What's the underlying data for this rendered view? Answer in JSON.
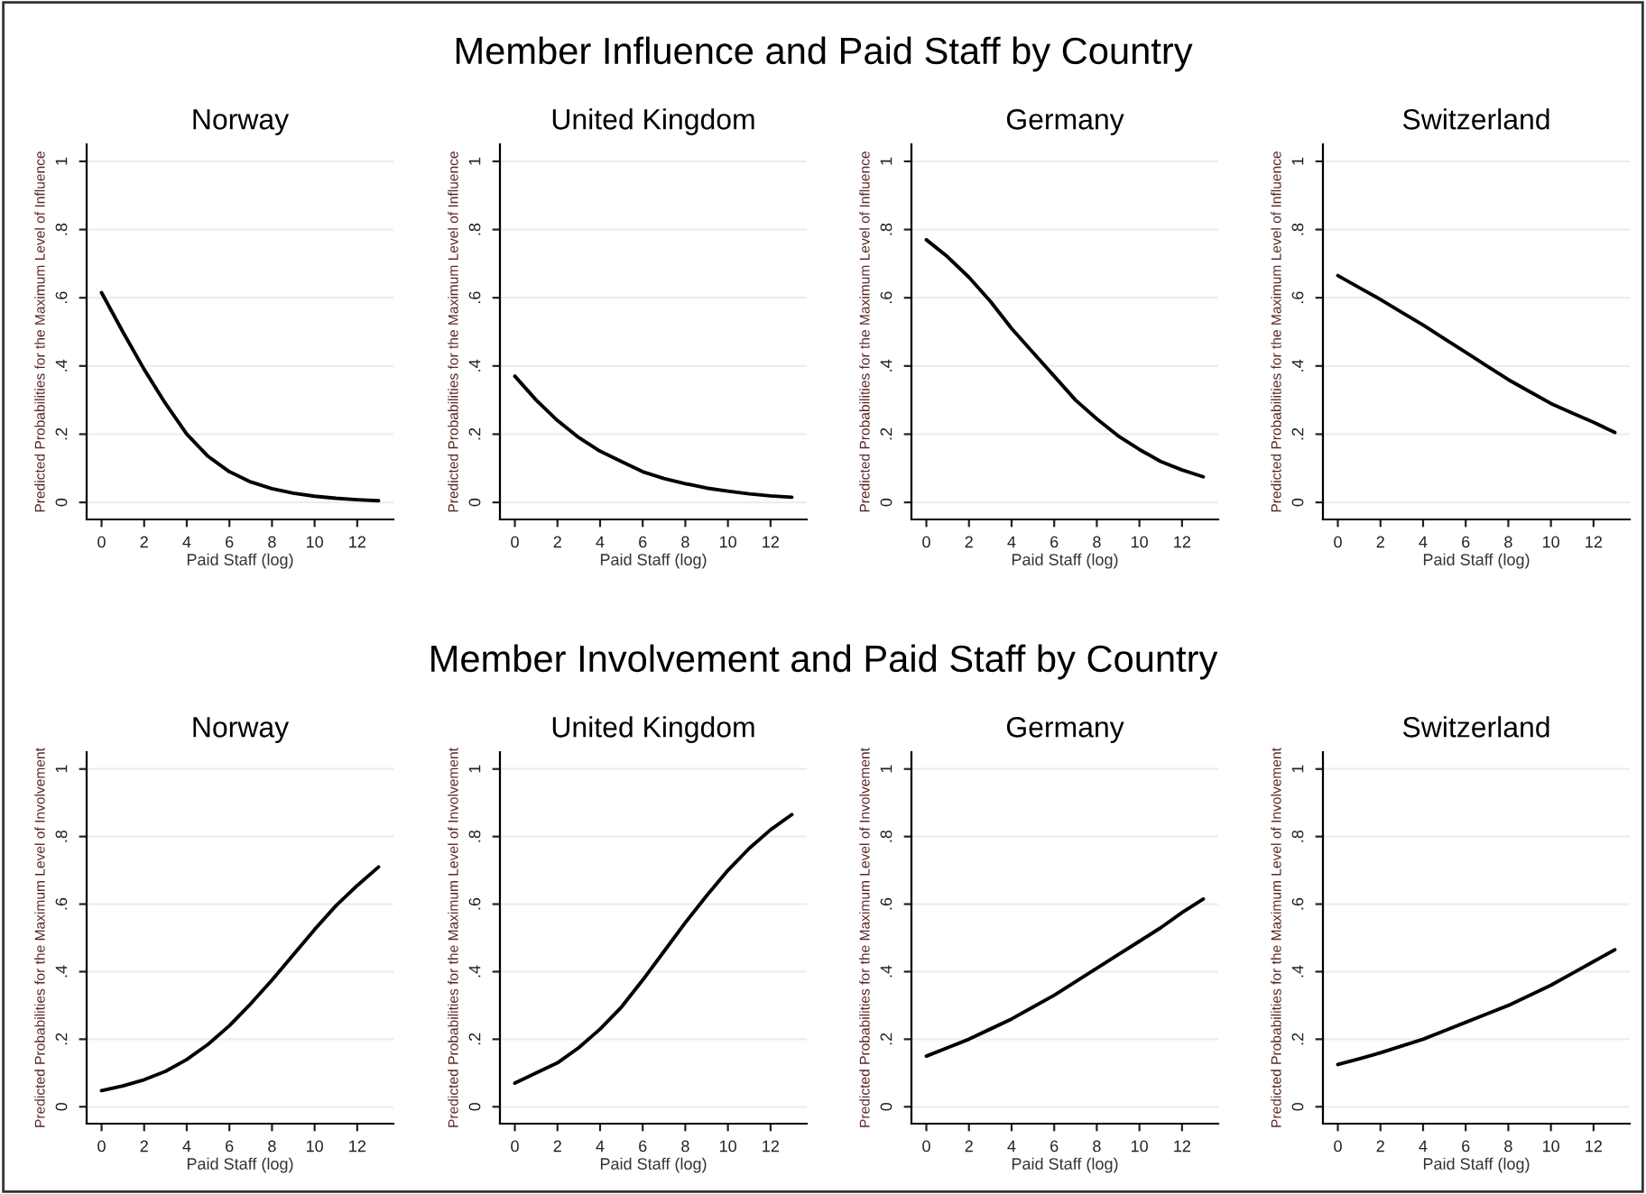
{
  "chart_data": [
    {
      "type": "line",
      "title": "Norway",
      "annotations": [
        "Member Influence and Paid Staff by Country"
      ],
      "xlabel": "Paid Staff (log)",
      "ylabel": "Predicted Probabilities for the Maximum Level of Influence",
      "grid": "y",
      "xlim": [
        -0.7,
        13.7
      ],
      "ylim": [
        -0.05,
        1.05
      ],
      "xticks": [
        0,
        2,
        4,
        6,
        8,
        10,
        12
      ],
      "yticks": [
        0,
        {
          "value": 0.2,
          "label": ".2"
        },
        {
          "value": 0.4,
          "label": ".4"
        },
        {
          "value": 0.6,
          "label": ".6"
        },
        {
          "value": 0.8,
          "label": ".8"
        },
        1
      ],
      "x": [
        0,
        1,
        2,
        3,
        4,
        5,
        6,
        7,
        8,
        9,
        10,
        11,
        12,
        13
      ],
      "series": [
        {
          "color": "#000000",
          "values": [
            0.615,
            0.5,
            0.39,
            0.29,
            0.2,
            0.135,
            0.09,
            0.06,
            0.04,
            0.027,
            0.018,
            0.012,
            0.008,
            0.005
          ]
        }
      ]
    },
    {
      "type": "line",
      "title": "United Kingdom",
      "xlabel": "Paid Staff (log)",
      "ylabel": "Predicted Probabilities for the Maximum Level of Influence",
      "grid": "y",
      "xlim": [
        -0.7,
        13.7
      ],
      "ylim": [
        -0.05,
        1.05
      ],
      "xticks": [
        0,
        2,
        4,
        6,
        8,
        10,
        12
      ],
      "yticks": [
        0,
        {
          "value": 0.2,
          "label": ".2"
        },
        {
          "value": 0.4,
          "label": ".4"
        },
        {
          "value": 0.6,
          "label": ".6"
        },
        {
          "value": 0.8,
          "label": ".8"
        },
        1
      ],
      "x": [
        0,
        1,
        2,
        3,
        4,
        5,
        6,
        7,
        8,
        9,
        10,
        11,
        12,
        13
      ],
      "series": [
        {
          "color": "#000000",
          "values": [
            0.37,
            0.3,
            0.24,
            0.19,
            0.15,
            0.12,
            0.09,
            0.07,
            0.055,
            0.042,
            0.033,
            0.025,
            0.019,
            0.015
          ]
        }
      ]
    },
    {
      "type": "line",
      "title": "Germany",
      "xlabel": "Paid Staff (log)",
      "ylabel": "Predicted Probabilities for the Maximum Level of Influence",
      "grid": "y",
      "xlim": [
        -0.7,
        13.7
      ],
      "ylim": [
        -0.05,
        1.05
      ],
      "xticks": [
        0,
        2,
        4,
        6,
        8,
        10,
        12
      ],
      "yticks": [
        0,
        {
          "value": 0.2,
          "label": ".2"
        },
        {
          "value": 0.4,
          "label": ".4"
        },
        {
          "value": 0.6,
          "label": ".6"
        },
        {
          "value": 0.8,
          "label": ".8"
        },
        1
      ],
      "x": [
        0,
        1,
        2,
        3,
        4,
        5,
        6,
        7,
        8,
        9,
        10,
        11,
        12,
        13
      ],
      "series": [
        {
          "color": "#000000",
          "values": [
            0.77,
            0.72,
            0.66,
            0.59,
            0.51,
            0.44,
            0.37,
            0.3,
            0.245,
            0.195,
            0.155,
            0.12,
            0.095,
            0.075
          ]
        }
      ]
    },
    {
      "type": "line",
      "title": "Switzerland",
      "xlabel": "Paid Staff (log)",
      "ylabel": "Predicted Probabilities for the Maximum Level of Influence",
      "grid": "y",
      "xlim": [
        -0.7,
        13.7
      ],
      "ylim": [
        -0.05,
        1.05
      ],
      "xticks": [
        0,
        2,
        4,
        6,
        8,
        10,
        12
      ],
      "yticks": [
        0,
        {
          "value": 0.2,
          "label": ".2"
        },
        {
          "value": 0.4,
          "label": ".4"
        },
        {
          "value": 0.6,
          "label": ".6"
        },
        {
          "value": 0.8,
          "label": ".8"
        },
        1
      ],
      "x": [
        0,
        1,
        2,
        3,
        4,
        5,
        6,
        7,
        8,
        9,
        10,
        11,
        12,
        13
      ],
      "series": [
        {
          "color": "#000000",
          "values": [
            0.665,
            0.63,
            0.595,
            0.557,
            0.52,
            0.48,
            0.44,
            0.4,
            0.36,
            0.325,
            0.29,
            0.262,
            0.235,
            0.205
          ]
        }
      ]
    },
    {
      "type": "line",
      "title": "Norway",
      "annotations": [
        "Member Involvement and Paid Staff by Country"
      ],
      "xlabel": "Paid Staff (log)",
      "ylabel": "Predicted Probabilities for the Maximum Level of Involvement",
      "grid": "y",
      "xlim": [
        -0.7,
        13.7
      ],
      "ylim": [
        -0.05,
        1.05
      ],
      "xticks": [
        0,
        2,
        4,
        6,
        8,
        10,
        12
      ],
      "yticks": [
        0,
        {
          "value": 0.2,
          "label": ".2"
        },
        {
          "value": 0.4,
          "label": ".4"
        },
        {
          "value": 0.6,
          "label": ".6"
        },
        {
          "value": 0.8,
          "label": ".8"
        },
        1
      ],
      "x": [
        0,
        1,
        2,
        3,
        4,
        5,
        6,
        7,
        8,
        9,
        10,
        11,
        12,
        13
      ],
      "series": [
        {
          "color": "#000000",
          "values": [
            0.048,
            0.062,
            0.08,
            0.105,
            0.14,
            0.185,
            0.24,
            0.305,
            0.375,
            0.45,
            0.525,
            0.595,
            0.655,
            0.71
          ]
        }
      ]
    },
    {
      "type": "line",
      "title": "United Kingdom",
      "xlabel": "Paid Staff (log)",
      "ylabel": "Predicted Probabilities for the Maximum Level of Involvement",
      "grid": "y",
      "xlim": [
        -0.7,
        13.7
      ],
      "ylim": [
        -0.05,
        1.05
      ],
      "xticks": [
        0,
        2,
        4,
        6,
        8,
        10,
        12
      ],
      "yticks": [
        0,
        {
          "value": 0.2,
          "label": ".2"
        },
        {
          "value": 0.4,
          "label": ".4"
        },
        {
          "value": 0.6,
          "label": ".6"
        },
        {
          "value": 0.8,
          "label": ".8"
        },
        1
      ],
      "x": [
        0,
        1,
        2,
        3,
        4,
        5,
        6,
        7,
        8,
        9,
        10,
        11,
        12,
        13
      ],
      "series": [
        {
          "color": "#000000",
          "values": [
            0.07,
            0.1,
            0.13,
            0.175,
            0.23,
            0.295,
            0.375,
            0.46,
            0.545,
            0.625,
            0.7,
            0.765,
            0.82,
            0.865
          ]
        }
      ]
    },
    {
      "type": "line",
      "title": "Germany",
      "xlabel": "Paid Staff (log)",
      "ylabel": "Predicted Probabilities for the Maximum Level of Involvement",
      "grid": "y",
      "xlim": [
        -0.7,
        13.7
      ],
      "ylim": [
        -0.05,
        1.05
      ],
      "xticks": [
        0,
        2,
        4,
        6,
        8,
        10,
        12
      ],
      "yticks": [
        0,
        {
          "value": 0.2,
          "label": ".2"
        },
        {
          "value": 0.4,
          "label": ".4"
        },
        {
          "value": 0.6,
          "label": ".6"
        },
        {
          "value": 0.8,
          "label": ".8"
        },
        1
      ],
      "x": [
        0,
        1,
        2,
        3,
        4,
        5,
        6,
        7,
        8,
        9,
        10,
        11,
        12,
        13
      ],
      "series": [
        {
          "color": "#000000",
          "values": [
            0.15,
            0.175,
            0.2,
            0.23,
            0.26,
            0.295,
            0.33,
            0.37,
            0.41,
            0.45,
            0.49,
            0.53,
            0.575,
            0.615
          ]
        }
      ]
    },
    {
      "type": "line",
      "title": "Switzerland",
      "xlabel": "Paid Staff (log)",
      "ylabel": "Predicted Probabilities for the Maximum Level of Involvement",
      "grid": "y",
      "xlim": [
        -0.7,
        13.7
      ],
      "ylim": [
        -0.05,
        1.05
      ],
      "xticks": [
        0,
        2,
        4,
        6,
        8,
        10,
        12
      ],
      "yticks": [
        0,
        {
          "value": 0.2,
          "label": ".2"
        },
        {
          "value": 0.4,
          "label": ".4"
        },
        {
          "value": 0.6,
          "label": ".6"
        },
        {
          "value": 0.8,
          "label": ".8"
        },
        1
      ],
      "x": [
        0,
        1,
        2,
        3,
        4,
        5,
        6,
        7,
        8,
        9,
        10,
        11,
        12,
        13
      ],
      "series": [
        {
          "color": "#000000",
          "values": [
            0.125,
            0.142,
            0.16,
            0.18,
            0.2,
            0.225,
            0.25,
            0.275,
            0.3,
            0.33,
            0.36,
            0.395,
            0.43,
            0.465
          ]
        }
      ]
    }
  ]
}
